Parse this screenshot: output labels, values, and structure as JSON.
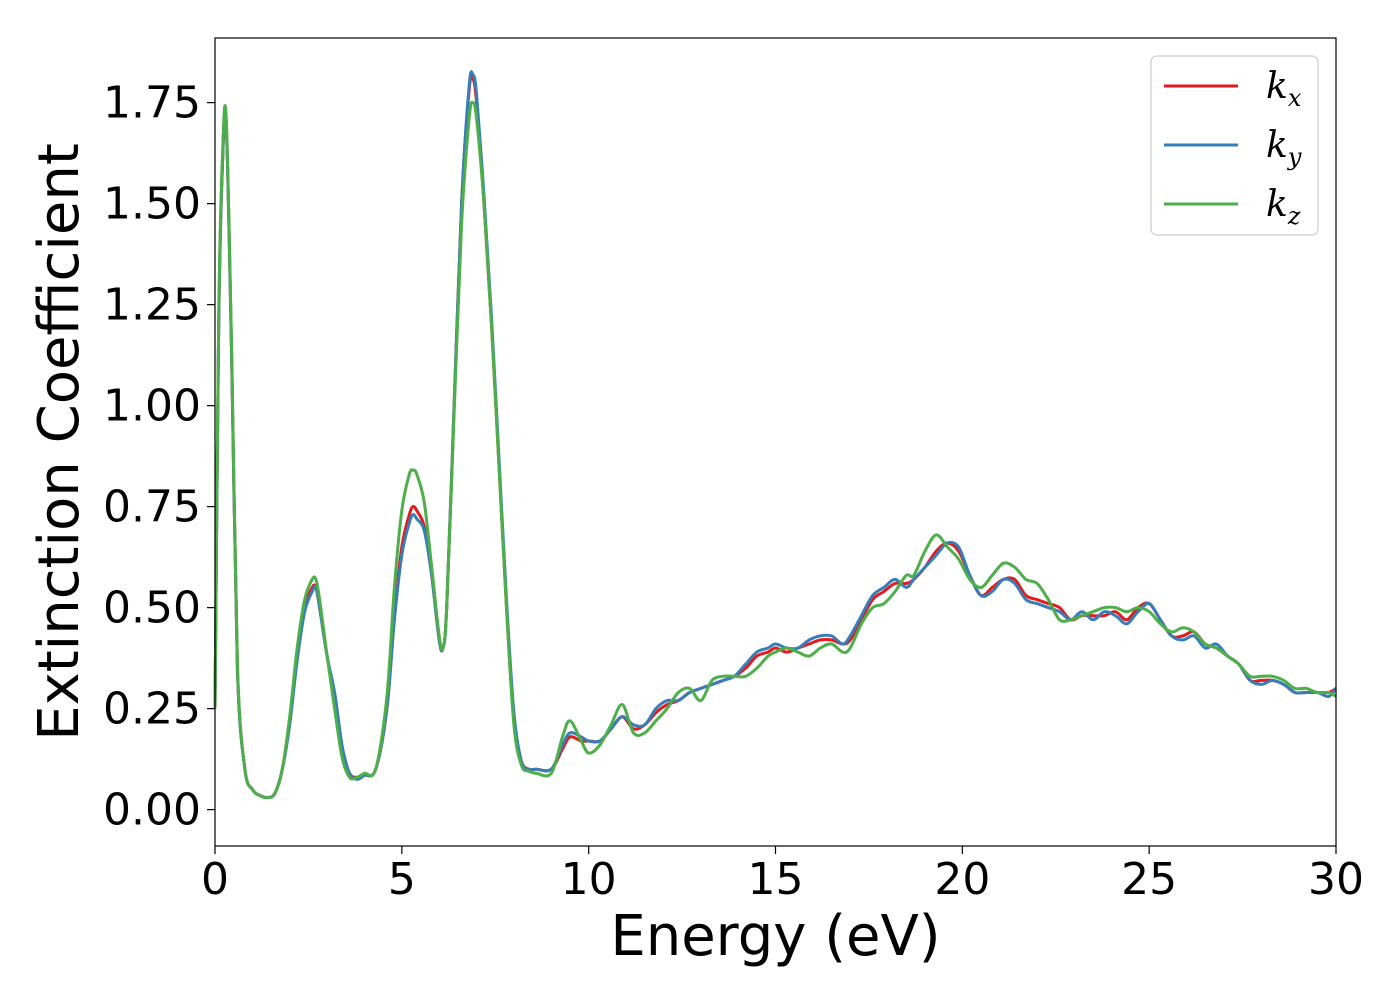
{
  "chart_data": {
    "type": "line",
    "title": "",
    "xlabel": "Energy (eV)",
    "ylabel": "Extinction Coefficient",
    "xlim": [
      0,
      30
    ],
    "ylim": [
      -0.09,
      1.91
    ],
    "xticks": [
      0,
      5,
      10,
      15,
      20,
      25,
      30
    ],
    "xtick_labels": [
      "0",
      "5",
      "10",
      "15",
      "20",
      "25",
      "30"
    ],
    "yticks": [
      0,
      0.25,
      0.5,
      0.75,
      1.0,
      1.25,
      1.5,
      1.75
    ],
    "ytick_labels": [
      "0.00",
      "0.25",
      "0.50",
      "0.75",
      "1.00",
      "1.25",
      "1.50",
      "1.75"
    ],
    "grid": false,
    "legend_position": "top-right",
    "series": [
      {
        "name": "k",
        "subscript": "x",
        "color": "#e41a1c",
        "x": [
          0,
          0.1,
          0.2,
          0.3,
          0.45,
          0.6,
          0.8,
          1.0,
          1.2,
          1.4,
          1.6,
          1.8,
          2.0,
          2.2,
          2.4,
          2.6,
          2.7,
          2.8,
          3.0,
          3.2,
          3.4,
          3.6,
          3.8,
          4.0,
          4.3,
          4.6,
          4.8,
          5.0,
          5.2,
          5.3,
          5.4,
          5.6,
          5.8,
          6.0,
          6.1,
          6.2,
          6.4,
          6.6,
          6.8,
          6.9,
          7.0,
          7.2,
          7.4,
          7.6,
          7.8,
          8.0,
          8.2,
          8.4,
          8.6,
          9.0,
          9.3,
          9.5,
          9.8,
          10.0,
          10.3,
          10.6,
          10.9,
          11.2,
          11.5,
          11.8,
          12.1,
          12.4,
          12.7,
          13.0,
          13.3,
          13.6,
          13.9,
          14.2,
          14.5,
          14.8,
          15.0,
          15.3,
          15.6,
          15.9,
          16.2,
          16.5,
          16.8,
          17.0,
          17.3,
          17.6,
          17.9,
          18.2,
          18.5,
          18.7,
          19.0,
          19.3,
          19.6,
          19.9,
          20.2,
          20.5,
          20.8,
          21.1,
          21.4,
          21.7,
          22.0,
          22.3,
          22.6,
          22.9,
          23.2,
          23.5,
          23.8,
          24.1,
          24.4,
          24.7,
          25.0,
          25.3,
          25.6,
          25.9,
          26.2,
          26.5,
          26.8,
          27.1,
          27.4,
          27.7,
          28.0,
          28.3,
          28.6,
          28.9,
          29.2,
          29.5,
          29.8,
          30.0
        ],
        "y": [
          0.25,
          1.2,
          1.6,
          1.7,
          1.1,
          0.35,
          0.1,
          0.05,
          0.035,
          0.03,
          0.04,
          0.1,
          0.22,
          0.38,
          0.5,
          0.55,
          0.55,
          0.5,
          0.38,
          0.28,
          0.15,
          0.09,
          0.08,
          0.085,
          0.1,
          0.25,
          0.48,
          0.65,
          0.73,
          0.75,
          0.74,
          0.7,
          0.58,
          0.42,
          0.4,
          0.5,
          1.0,
          1.5,
          1.78,
          1.81,
          1.75,
          1.5,
          1.2,
          0.85,
          0.5,
          0.22,
          0.12,
          0.1,
          0.1,
          0.1,
          0.15,
          0.18,
          0.17,
          0.17,
          0.17,
          0.2,
          0.23,
          0.2,
          0.21,
          0.24,
          0.26,
          0.27,
          0.29,
          0.3,
          0.31,
          0.32,
          0.33,
          0.35,
          0.38,
          0.39,
          0.4,
          0.39,
          0.4,
          0.41,
          0.42,
          0.42,
          0.41,
          0.42,
          0.47,
          0.52,
          0.54,
          0.56,
          0.56,
          0.57,
          0.6,
          0.64,
          0.66,
          0.64,
          0.58,
          0.53,
          0.55,
          0.57,
          0.57,
          0.53,
          0.52,
          0.51,
          0.5,
          0.47,
          0.48,
          0.48,
          0.48,
          0.49,
          0.47,
          0.5,
          0.51,
          0.47,
          0.43,
          0.43,
          0.44,
          0.41,
          0.4,
          0.38,
          0.36,
          0.32,
          0.32,
          0.32,
          0.31,
          0.29,
          0.29,
          0.29,
          0.29,
          0.3
        ]
      },
      {
        "name": "k",
        "subscript": "y",
        "color": "#377eb8",
        "x": [
          0,
          0.1,
          0.2,
          0.3,
          0.45,
          0.6,
          0.8,
          1.0,
          1.2,
          1.4,
          1.6,
          1.8,
          2.0,
          2.2,
          2.4,
          2.6,
          2.7,
          2.8,
          3.0,
          3.2,
          3.4,
          3.6,
          3.8,
          4.0,
          4.3,
          4.6,
          4.8,
          5.0,
          5.2,
          5.3,
          5.4,
          5.6,
          5.8,
          6.0,
          6.1,
          6.2,
          6.4,
          6.6,
          6.8,
          6.9,
          7.0,
          7.2,
          7.4,
          7.6,
          7.8,
          8.0,
          8.2,
          8.4,
          8.6,
          9.0,
          9.3,
          9.5,
          9.8,
          10.0,
          10.3,
          10.6,
          10.9,
          11.2,
          11.5,
          11.8,
          12.1,
          12.4,
          12.7,
          13.0,
          13.3,
          13.6,
          13.9,
          14.2,
          14.5,
          14.8,
          15.0,
          15.3,
          15.6,
          15.9,
          16.2,
          16.5,
          16.8,
          17.0,
          17.3,
          17.6,
          17.9,
          18.2,
          18.5,
          18.7,
          19.0,
          19.3,
          19.6,
          19.9,
          20.2,
          20.5,
          20.8,
          21.1,
          21.4,
          21.7,
          22.0,
          22.3,
          22.6,
          22.9,
          23.2,
          23.5,
          23.8,
          24.1,
          24.4,
          24.7,
          25.0,
          25.3,
          25.6,
          25.9,
          26.2,
          26.5,
          26.8,
          27.1,
          27.4,
          27.7,
          28.0,
          28.3,
          28.6,
          28.9,
          29.2,
          29.5,
          29.8,
          30.0
        ],
        "y": [
          0.25,
          1.2,
          1.6,
          1.7,
          1.1,
          0.35,
          0.1,
          0.05,
          0.035,
          0.03,
          0.04,
          0.1,
          0.21,
          0.37,
          0.49,
          0.54,
          0.55,
          0.5,
          0.38,
          0.29,
          0.16,
          0.09,
          0.075,
          0.085,
          0.1,
          0.25,
          0.47,
          0.63,
          0.71,
          0.73,
          0.72,
          0.69,
          0.58,
          0.42,
          0.4,
          0.5,
          1.0,
          1.5,
          1.79,
          1.82,
          1.77,
          1.52,
          1.22,
          0.87,
          0.52,
          0.24,
          0.12,
          0.1,
          0.1,
          0.1,
          0.16,
          0.19,
          0.18,
          0.17,
          0.17,
          0.2,
          0.23,
          0.21,
          0.21,
          0.25,
          0.27,
          0.27,
          0.29,
          0.3,
          0.31,
          0.32,
          0.33,
          0.36,
          0.39,
          0.4,
          0.41,
          0.4,
          0.4,
          0.42,
          0.43,
          0.43,
          0.41,
          0.43,
          0.48,
          0.53,
          0.55,
          0.57,
          0.55,
          0.57,
          0.6,
          0.63,
          0.66,
          0.65,
          0.58,
          0.53,
          0.54,
          0.57,
          0.56,
          0.52,
          0.51,
          0.5,
          0.49,
          0.47,
          0.49,
          0.47,
          0.49,
          0.48,
          0.46,
          0.49,
          0.51,
          0.47,
          0.43,
          0.42,
          0.43,
          0.4,
          0.41,
          0.38,
          0.36,
          0.32,
          0.31,
          0.32,
          0.31,
          0.29,
          0.29,
          0.29,
          0.28,
          0.3
        ]
      },
      {
        "name": "k",
        "subscript": "z",
        "color": "#4daf4a",
        "x": [
          0,
          0.1,
          0.2,
          0.3,
          0.45,
          0.6,
          0.8,
          1.0,
          1.2,
          1.4,
          1.6,
          1.8,
          2.0,
          2.2,
          2.4,
          2.6,
          2.7,
          2.8,
          3.0,
          3.2,
          3.4,
          3.6,
          3.8,
          4.0,
          4.3,
          4.6,
          4.8,
          5.0,
          5.2,
          5.3,
          5.4,
          5.6,
          5.8,
          6.0,
          6.1,
          6.2,
          6.4,
          6.6,
          6.8,
          6.9,
          7.0,
          7.2,
          7.4,
          7.6,
          7.8,
          8.0,
          8.2,
          8.4,
          8.6,
          9.0,
          9.3,
          9.5,
          9.8,
          10.0,
          10.3,
          10.6,
          10.9,
          11.2,
          11.5,
          11.8,
          12.1,
          12.4,
          12.7,
          13.0,
          13.3,
          13.6,
          13.9,
          14.2,
          14.5,
          14.8,
          15.0,
          15.3,
          15.6,
          15.9,
          16.2,
          16.5,
          16.8,
          17.0,
          17.3,
          17.6,
          17.9,
          18.2,
          18.5,
          18.7,
          19.0,
          19.3,
          19.6,
          19.9,
          20.2,
          20.5,
          20.8,
          21.1,
          21.4,
          21.7,
          22.0,
          22.3,
          22.6,
          22.9,
          23.2,
          23.5,
          23.8,
          24.1,
          24.4,
          24.7,
          25.0,
          25.3,
          25.6,
          25.9,
          26.2,
          26.5,
          26.8,
          27.1,
          27.4,
          27.7,
          28.0,
          28.3,
          28.6,
          28.9,
          29.2,
          29.5,
          29.8,
          30.0
        ],
        "y": [
          0.25,
          1.22,
          1.62,
          1.71,
          1.12,
          0.36,
          0.1,
          0.05,
          0.035,
          0.03,
          0.04,
          0.1,
          0.23,
          0.4,
          0.52,
          0.57,
          0.57,
          0.52,
          0.38,
          0.25,
          0.13,
          0.08,
          0.08,
          0.09,
          0.1,
          0.28,
          0.55,
          0.74,
          0.83,
          0.84,
          0.83,
          0.76,
          0.6,
          0.43,
          0.4,
          0.5,
          0.98,
          1.45,
          1.71,
          1.75,
          1.71,
          1.5,
          1.2,
          0.85,
          0.5,
          0.21,
          0.11,
          0.095,
          0.09,
          0.09,
          0.18,
          0.22,
          0.17,
          0.14,
          0.16,
          0.21,
          0.26,
          0.19,
          0.19,
          0.22,
          0.25,
          0.29,
          0.3,
          0.27,
          0.32,
          0.33,
          0.33,
          0.33,
          0.35,
          0.38,
          0.39,
          0.4,
          0.39,
          0.38,
          0.4,
          0.41,
          0.39,
          0.4,
          0.46,
          0.5,
          0.51,
          0.54,
          0.58,
          0.58,
          0.64,
          0.68,
          0.65,
          0.62,
          0.57,
          0.55,
          0.58,
          0.61,
          0.6,
          0.57,
          0.56,
          0.52,
          0.47,
          0.47,
          0.48,
          0.49,
          0.5,
          0.5,
          0.49,
          0.5,
          0.49,
          0.46,
          0.44,
          0.45,
          0.44,
          0.41,
          0.4,
          0.38,
          0.36,
          0.33,
          0.33,
          0.33,
          0.32,
          0.3,
          0.3,
          0.29,
          0.29,
          0.28
        ]
      }
    ]
  }
}
